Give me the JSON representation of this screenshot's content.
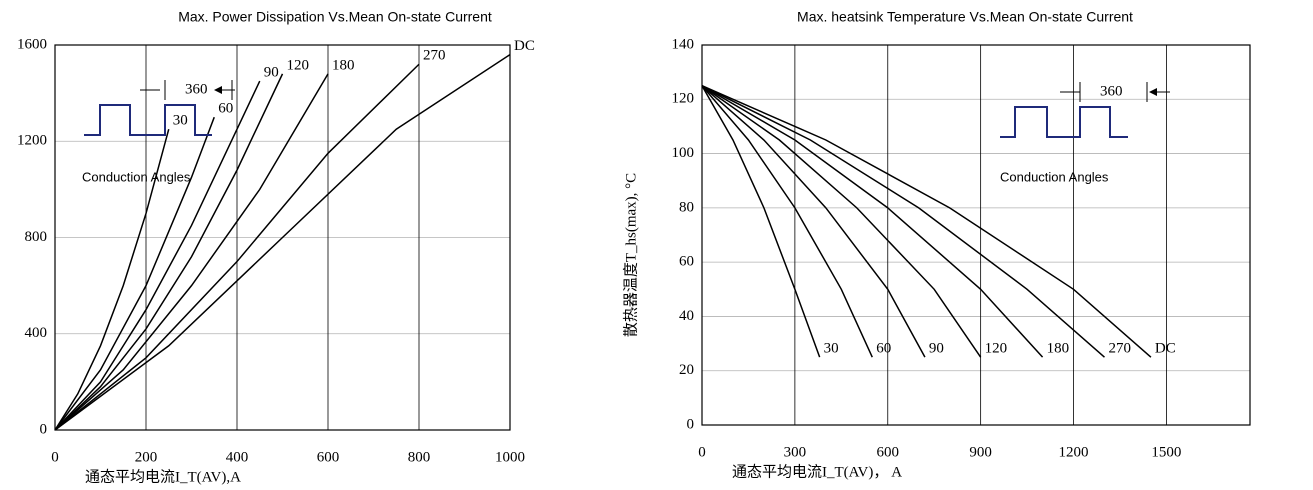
{
  "chart_data": [
    {
      "type": "line",
      "title": "Max. Power Dissipation Vs.Mean On-state Current",
      "x_label": "通态平均电流I_T(AV),A",
      "annotations": [
        "360",
        "Conduction Angles"
      ],
      "xlim": [
        0,
        1000
      ],
      "ylim": [
        0,
        1600
      ],
      "xticks": [
        0,
        200,
        400,
        600,
        800,
        1000
      ],
      "yticks": [
        0,
        400,
        800,
        1200,
        1600
      ],
      "grid": true,
      "series": [
        {
          "name": "30",
          "color": "#000000",
          "x": [
            0,
            50,
            100,
            150,
            200,
            250
          ],
          "values": [
            0,
            150,
            350,
            600,
            900,
            1250
          ]
        },
        {
          "name": "60",
          "color": "#000000",
          "x": [
            0,
            100,
            200,
            300,
            350
          ],
          "values": [
            0,
            250,
            600,
            1050,
            1300
          ]
        },
        {
          "name": "90",
          "color": "#000000",
          "x": [
            0,
            100,
            200,
            300,
            400,
            450
          ],
          "values": [
            0,
            200,
            500,
            850,
            1250,
            1450
          ]
        },
        {
          "name": "120",
          "color": "#000000",
          "x": [
            0,
            100,
            200,
            300,
            400,
            500
          ],
          "values": [
            0,
            180,
            420,
            720,
            1080,
            1480
          ]
        },
        {
          "name": "180",
          "color": "#000000",
          "x": [
            0,
            150,
            300,
            450,
            600
          ],
          "values": [
            0,
            250,
            600,
            1000,
            1480
          ]
        },
        {
          "name": "270",
          "color": "#000000",
          "x": [
            0,
            200,
            400,
            600,
            800
          ],
          "values": [
            0,
            300,
            700,
            1150,
            1520
          ]
        },
        {
          "name": "DC",
          "color": "#000000",
          "x": [
            0,
            250,
            500,
            750,
            1000
          ],
          "values": [
            0,
            350,
            800,
            1250,
            1560
          ]
        }
      ]
    },
    {
      "type": "line",
      "title": "Max. heatsink Temperature Vs.Mean On-state Current",
      "x_label": "通态平均电流I_T(AV)， A",
      "y_label": "散热器温度T_hs(max), °C",
      "annotations": [
        "360",
        "Conduction Angles"
      ],
      "xlim": [
        0,
        1770
      ],
      "ylim": [
        0,
        140
      ],
      "xticks": [
        0,
        300,
        600,
        900,
        1200,
        1500
      ],
      "yticks": [
        0,
        20,
        40,
        60,
        80,
        100,
        120,
        140
      ],
      "grid": true,
      "series": [
        {
          "name": "30",
          "color": "#000000",
          "x": [
            0,
            100,
            200,
            300,
            380
          ],
          "values": [
            125,
            105,
            80,
            50,
            25
          ]
        },
        {
          "name": "60",
          "color": "#000000",
          "x": [
            0,
            150,
            300,
            450,
            550
          ],
          "values": [
            125,
            105,
            80,
            50,
            25
          ]
        },
        {
          "name": "90",
          "color": "#000000",
          "x": [
            0,
            200,
            400,
            600,
            720
          ],
          "values": [
            125,
            105,
            80,
            50,
            25
          ]
        },
        {
          "name": "120",
          "color": "#000000",
          "x": [
            0,
            250,
            500,
            750,
            900
          ],
          "values": [
            125,
            105,
            80,
            50,
            25
          ]
        },
        {
          "name": "180",
          "color": "#000000",
          "x": [
            0,
            300,
            600,
            900,
            1100
          ],
          "values": [
            125,
            105,
            80,
            50,
            25
          ]
        },
        {
          "name": "270",
          "color": "#000000",
          "x": [
            0,
            350,
            700,
            1050,
            1300
          ],
          "values": [
            125,
            105,
            80,
            50,
            25
          ]
        },
        {
          "name": "DC",
          "color": "#000000",
          "x": [
            0,
            400,
            800,
            1200,
            1450
          ],
          "values": [
            125,
            105,
            80,
            50,
            25
          ]
        }
      ]
    }
  ]
}
